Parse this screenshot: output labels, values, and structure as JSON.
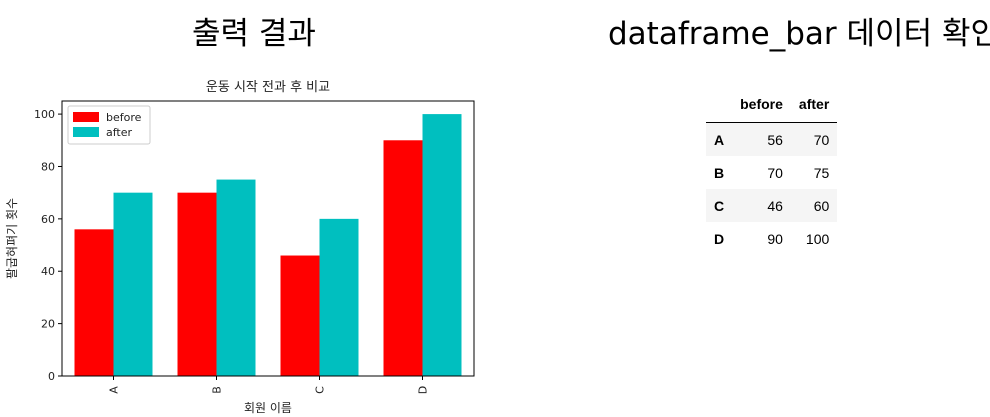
{
  "headings": {
    "left": "출력 결과",
    "right": "dataframe_bar 데이터 확인"
  },
  "chart_data": {
    "type": "bar",
    "title": "운동 시작 전과 후 비교",
    "xlabel": "회원 이름",
    "ylabel": "팔굽혀펴기 횟수",
    "categories": [
      "A",
      "B",
      "C",
      "D"
    ],
    "series": [
      {
        "name": "before",
        "values": [
          56,
          70,
          46,
          90
        ],
        "color": "#ff0000"
      },
      {
        "name": "after",
        "values": [
          70,
          75,
          60,
          100
        ],
        "color": "#00bfbf"
      }
    ],
    "ylim": [
      0,
      105
    ],
    "yticks": [
      0,
      20,
      40,
      60,
      80,
      100
    ],
    "legend_position": "top-left",
    "grid": false
  },
  "table": {
    "columns": [
      "before",
      "after"
    ],
    "rows": [
      {
        "index": "A",
        "values": [
          "56",
          "70"
        ]
      },
      {
        "index": "B",
        "values": [
          "70",
          "75"
        ]
      },
      {
        "index": "C",
        "values": [
          "46",
          "60"
        ]
      },
      {
        "index": "D",
        "values": [
          "90",
          "100"
        ]
      }
    ]
  }
}
